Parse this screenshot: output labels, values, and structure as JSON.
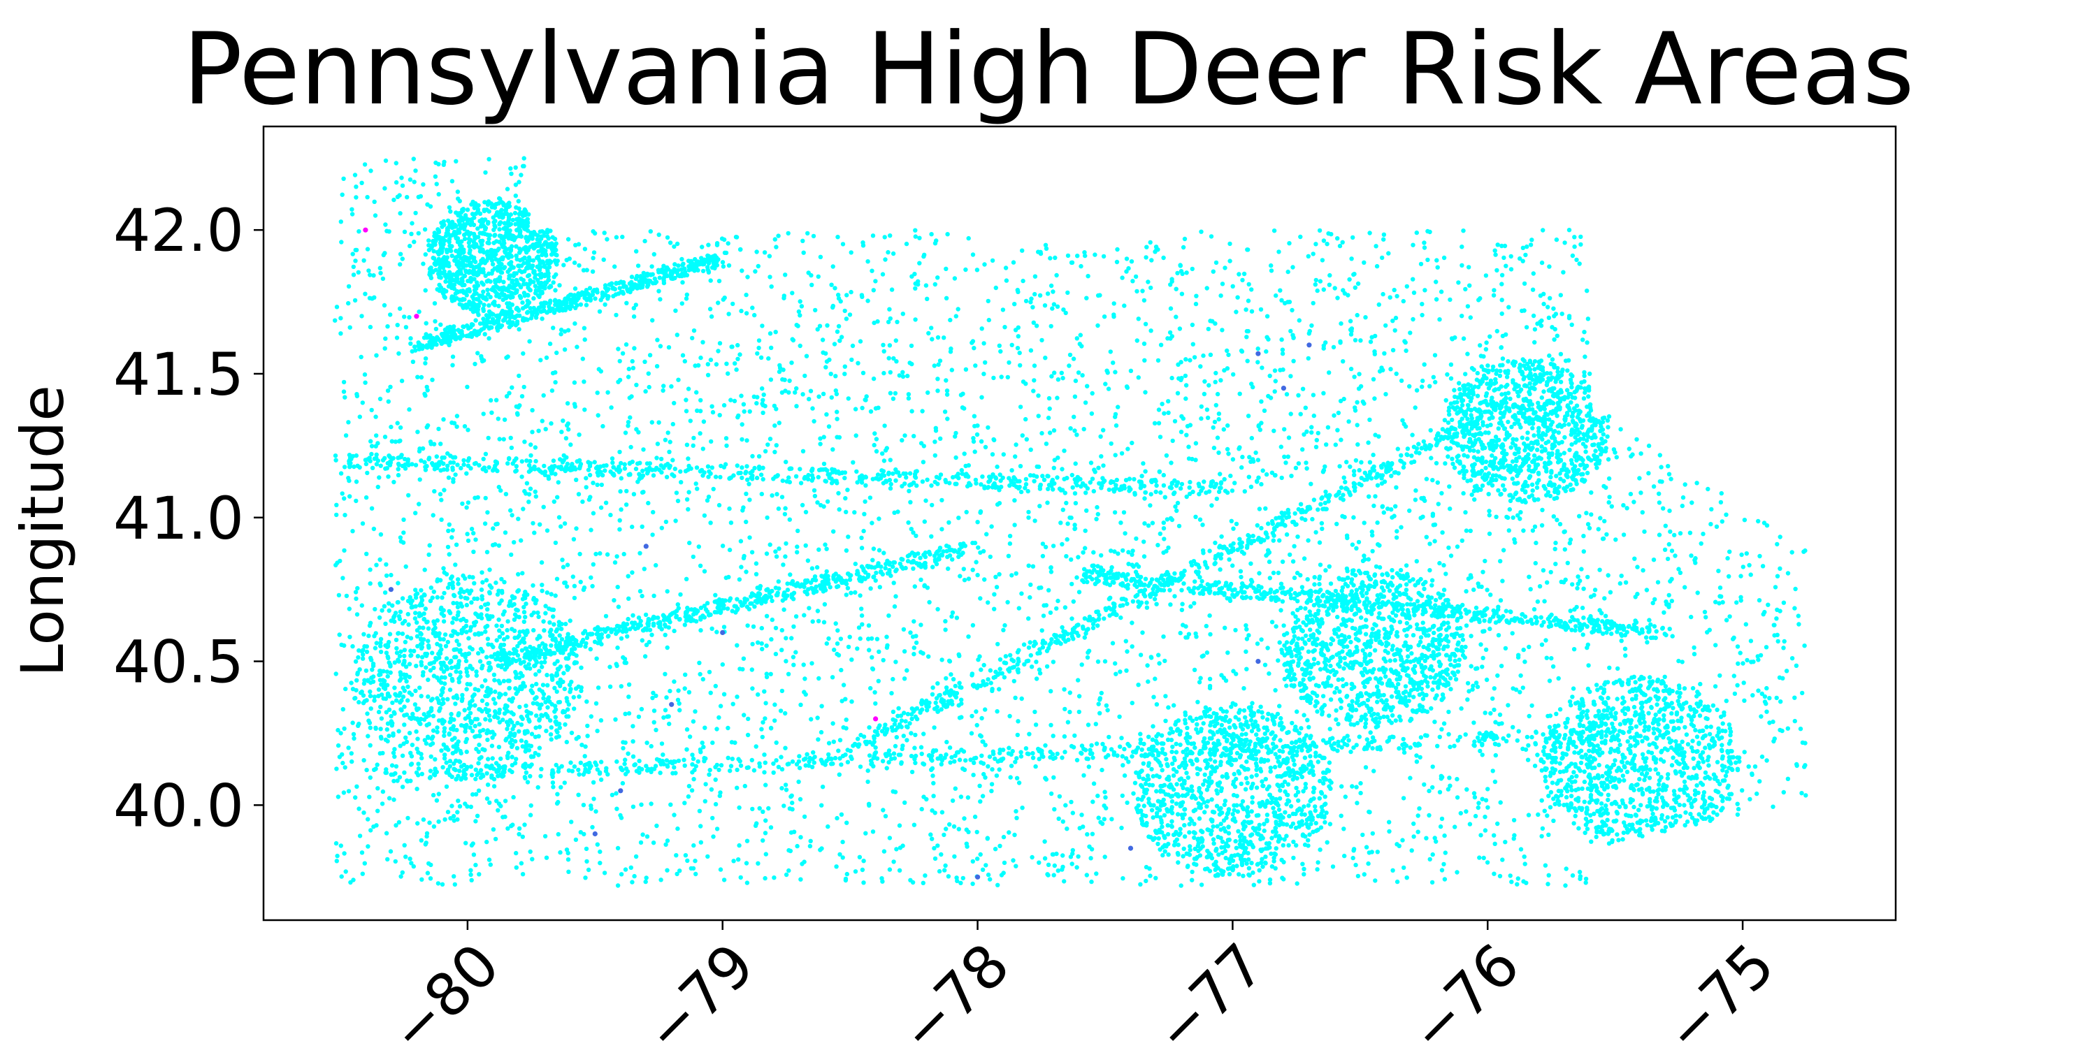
{
  "chart_data": {
    "type": "scatter",
    "title": "Pennsylvania High Deer Risk Areas",
    "xlabel": "",
    "ylabel": "Longitude",
    "xlim": [
      -80.8,
      -74.4
    ],
    "ylim": [
      39.6,
      42.36
    ],
    "xticks": [
      -80,
      -79,
      -78,
      -77,
      -76,
      -75
    ],
    "xtick_labels": [
      "−80",
      "−79",
      "−78",
      "−77",
      "−76",
      "−75"
    ],
    "yticks": [
      40.0,
      40.5,
      41.0,
      41.5,
      42.0
    ],
    "ytick_labels": [
      "40.0",
      "40.5",
      "41.0",
      "41.5",
      "42.0"
    ],
    "grid": false,
    "legend": "none",
    "point_color": "#00ffff",
    "outlier_colors": [
      "#4169e1",
      "#ff00ff"
    ],
    "series": [
      {
        "values_desc": "dense scatter of risk locations (lon, lat) across Pennsylvania",
        "points": [
          [
            -80.0,
            40.45
          ],
          [
            -79.95,
            40.5
          ],
          [
            -80.1,
            40.4
          ],
          [
            -79.9,
            40.55
          ],
          [
            -80.05,
            40.6
          ],
          [
            -76.5,
            40.6
          ],
          [
            -76.4,
            40.5
          ],
          [
            -76.6,
            40.7
          ],
          [
            -76.3,
            40.3
          ],
          [
            -75.6,
            40.1
          ],
          [
            -75.4,
            40.0
          ],
          [
            -75.2,
            40.2
          ],
          [
            -75.5,
            40.3
          ],
          [
            -77.0,
            40.2
          ],
          [
            -77.2,
            40.0
          ],
          [
            -76.9,
            39.9
          ],
          [
            -75.8,
            41.3
          ],
          [
            -75.6,
            41.5
          ],
          [
            -75.9,
            41.0
          ],
          [
            -79.8,
            42.1
          ],
          [
            -79.6,
            41.9
          ],
          [
            -80.4,
            41.2
          ],
          [
            -80.3,
            40.8
          ],
          [
            -78.9,
            40.3
          ],
          [
            -78.0,
            40.8
          ],
          [
            -77.8,
            41.0
          ],
          [
            -77.5,
            40.5
          ],
          [
            -78.4,
            40.2
          ],
          [
            -76.9,
            41.2
          ],
          [
            -79.1,
            41.1
          ]
        ]
      }
    ],
    "outliers": [
      [
        -80.2,
        41.7,
        "#ff00ff"
      ],
      [
        -78.4,
        40.3,
        "#ff00ff"
      ],
      [
        -80.4,
        42.0,
        "#ff00ff"
      ],
      [
        -79.3,
        40.9,
        "#4169e1"
      ],
      [
        -76.9,
        41.57,
        "#4169e1"
      ],
      [
        -76.7,
        41.6,
        "#4169e1"
      ],
      [
        -78.0,
        39.75,
        "#4169e1"
      ],
      [
        -76.9,
        40.5,
        "#4169e1"
      ],
      [
        -80.3,
        40.75,
        "#4169e1"
      ],
      [
        -79.0,
        40.6,
        "#4169e1"
      ],
      [
        -79.2,
        40.35,
        "#4169e1"
      ],
      [
        -79.4,
        40.05,
        "#4169e1"
      ],
      [
        -79.5,
        39.9,
        "#4169e1"
      ],
      [
        -76.8,
        41.45,
        "#4169e1"
      ],
      [
        -77.4,
        39.85,
        "#4169e1"
      ]
    ]
  }
}
